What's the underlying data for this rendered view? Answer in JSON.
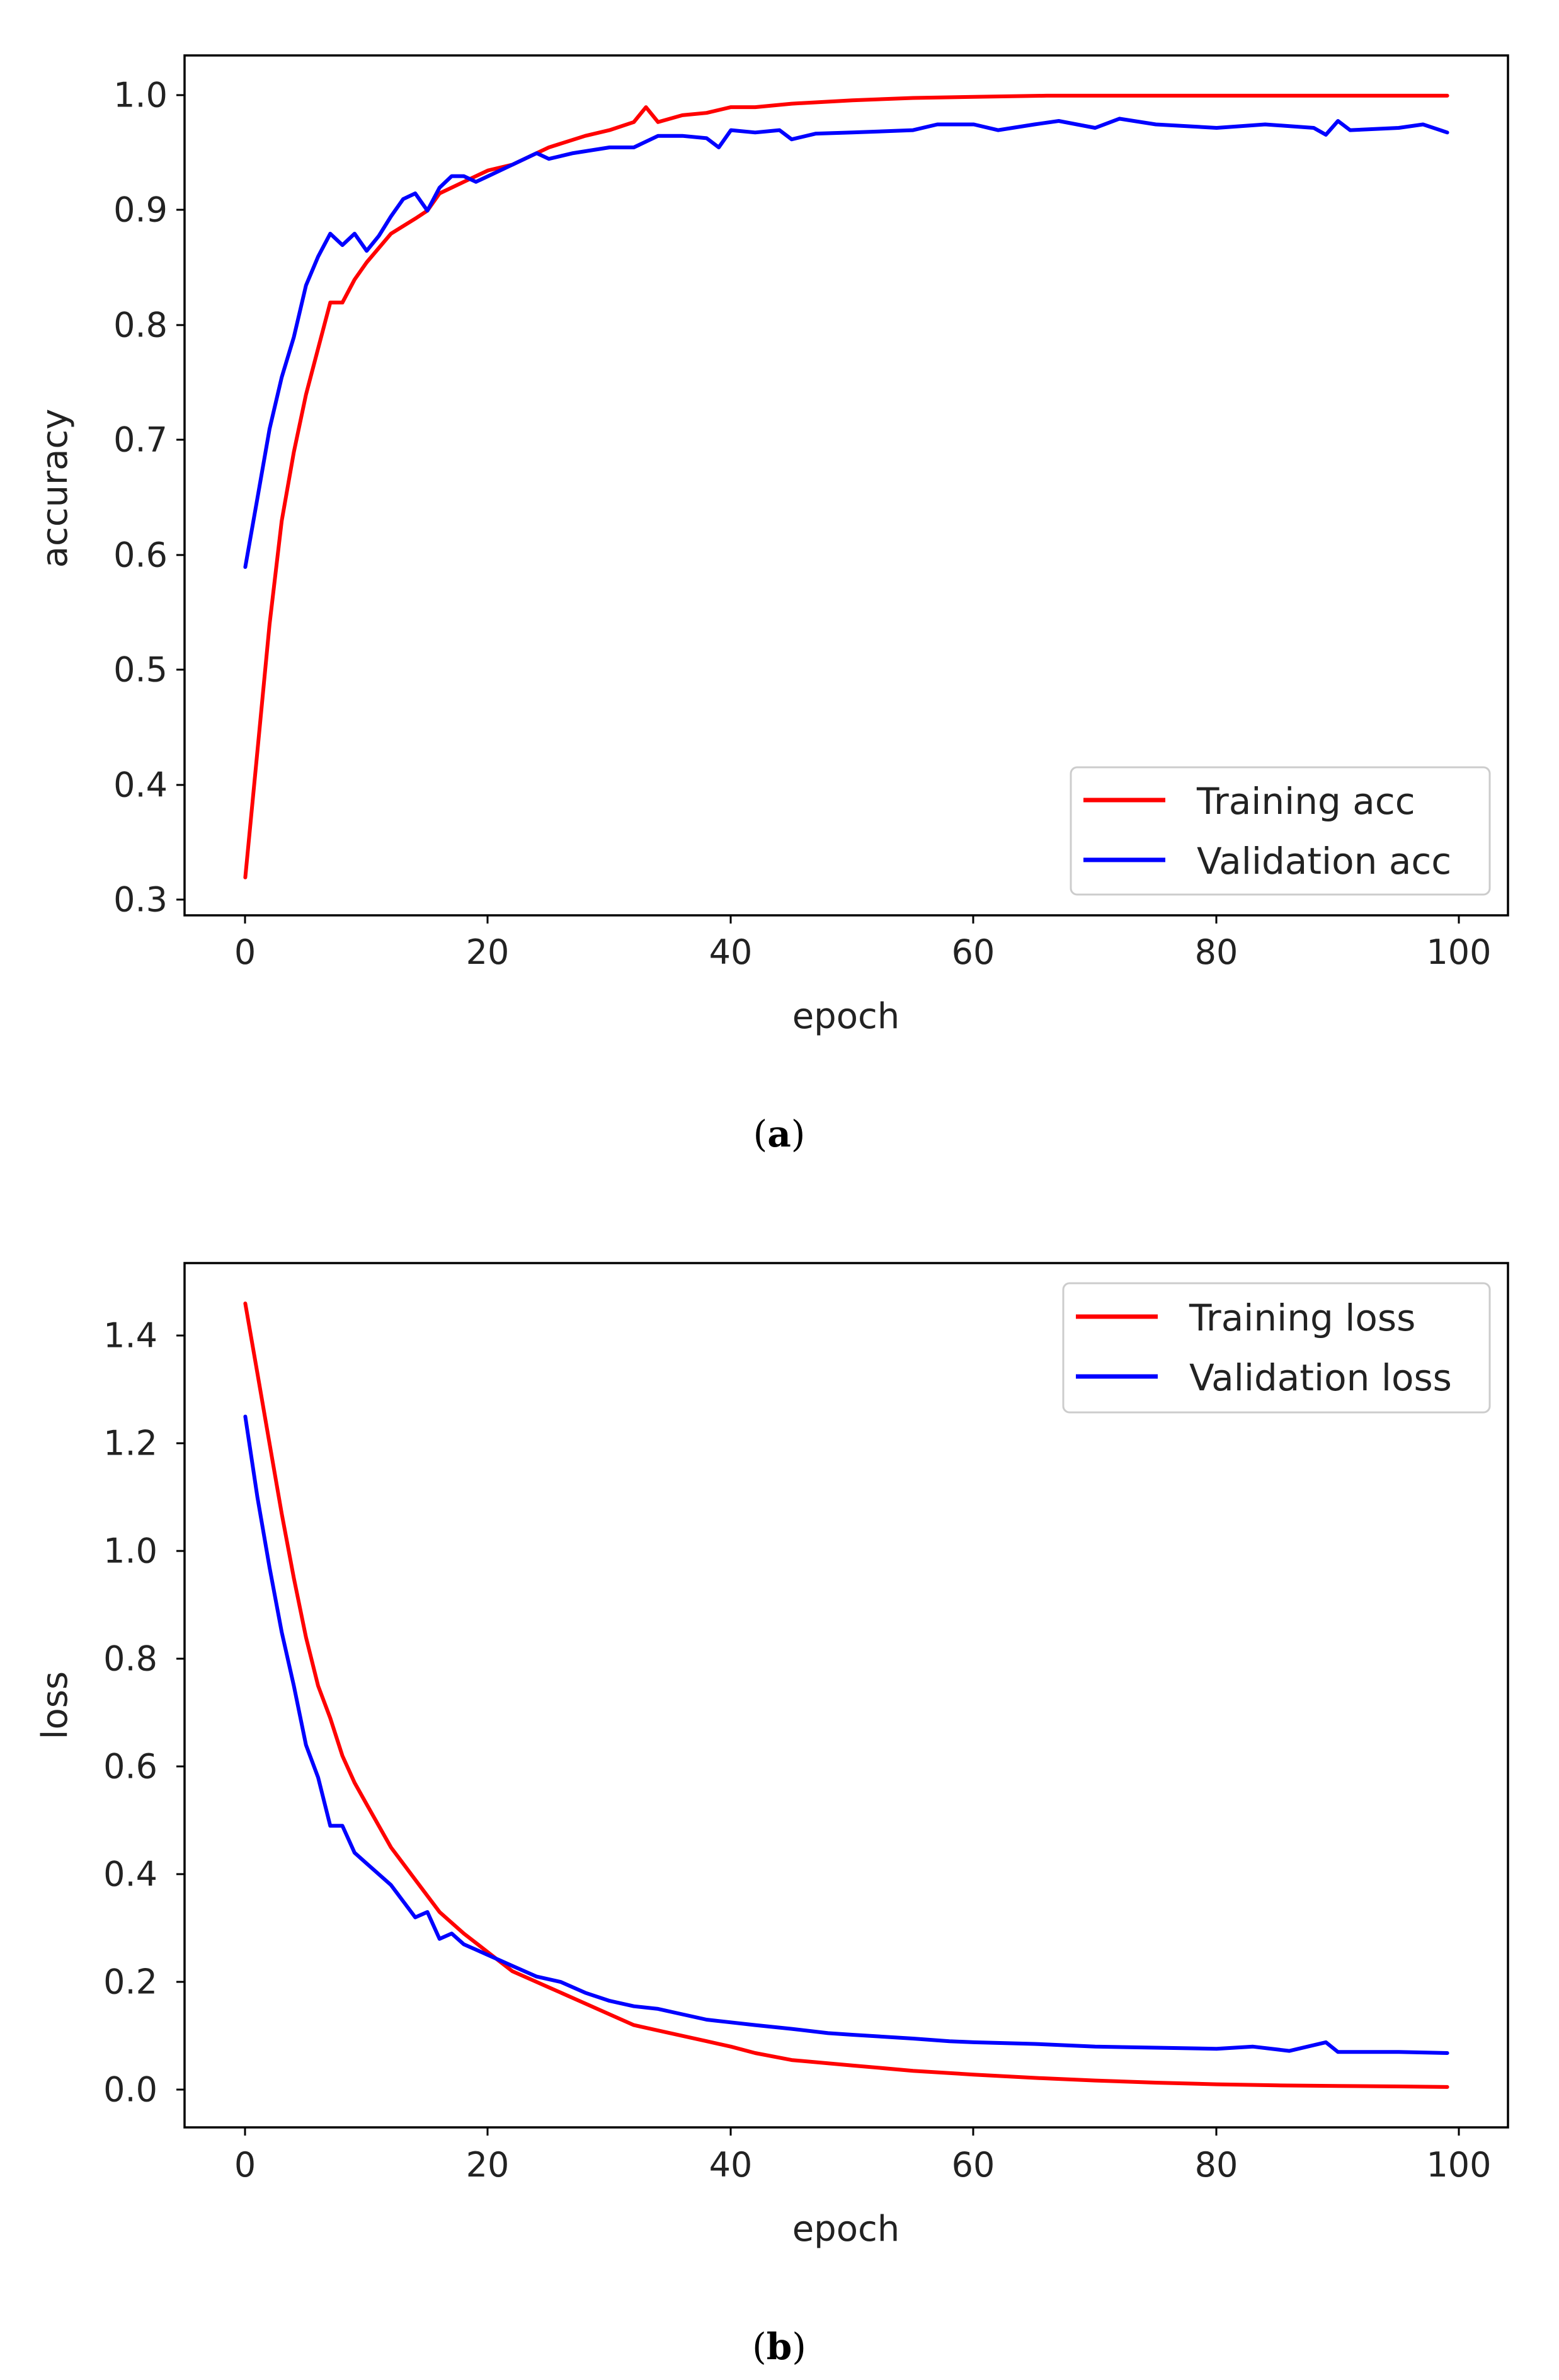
{
  "chart_data": [
    {
      "type": "line",
      "panel_label": "a",
      "xlabel": "epoch",
      "ylabel": "accuracy",
      "xlim": [
        -5,
        104
      ],
      "ylim": [
        0.287,
        1.035
      ],
      "xticks": [
        "0",
        "20",
        "40",
        "60",
        "80",
        "100"
      ],
      "yticks": [
        "0.3",
        "0.4",
        "0.5",
        "0.6",
        "0.7",
        "0.8",
        "0.9",
        "1.0"
      ],
      "legend_position": "lower-right",
      "series": [
        {
          "name": "Training acc",
          "color": "#ff0000",
          "anchors": [
            [
              0,
              0.32
            ],
            [
              1,
              0.43
            ],
            [
              2,
              0.54
            ],
            [
              3,
              0.63
            ],
            [
              4,
              0.69
            ],
            [
              5,
              0.74
            ],
            [
              6,
              0.78
            ],
            [
              7,
              0.82
            ],
            [
              8,
              0.82
            ],
            [
              9,
              0.84
            ],
            [
              10,
              0.855
            ],
            [
              12,
              0.88
            ],
            [
              14,
              0.893
            ],
            [
              15,
              0.9
            ],
            [
              16,
              0.915
            ],
            [
              18,
              0.925
            ],
            [
              20,
              0.935
            ],
            [
              22,
              0.94
            ],
            [
              25,
              0.955
            ],
            [
              28,
              0.965
            ],
            [
              30,
              0.97
            ],
            [
              32,
              0.977
            ],
            [
              33,
              0.99
            ],
            [
              34,
              0.977
            ],
            [
              36,
              0.983
            ],
            [
              38,
              0.985
            ],
            [
              40,
              0.99
            ],
            [
              42,
              0.99
            ],
            [
              45,
              0.993
            ],
            [
              50,
              0.996
            ],
            [
              55,
              0.998
            ],
            [
              60,
              0.999
            ],
            [
              66,
              1.0
            ],
            [
              70,
              1.0
            ],
            [
              80,
              1.0
            ],
            [
              90,
              1.0
            ],
            [
              99,
              1.0
            ]
          ]
        },
        {
          "name": "Validation acc",
          "color": "#0000ff",
          "anchors": [
            [
              0,
              0.59
            ],
            [
              1,
              0.65
            ],
            [
              2,
              0.71
            ],
            [
              3,
              0.755
            ],
            [
              4,
              0.79
            ],
            [
              5,
              0.835
            ],
            [
              6,
              0.86
            ],
            [
              7,
              0.88
            ],
            [
              8,
              0.87
            ],
            [
              9,
              0.88
            ],
            [
              10,
              0.865
            ],
            [
              11,
              0.878
            ],
            [
              12,
              0.895
            ],
            [
              13,
              0.91
            ],
            [
              14,
              0.915
            ],
            [
              15,
              0.9
            ],
            [
              16,
              0.92
            ],
            [
              17,
              0.93
            ],
            [
              18,
              0.93
            ],
            [
              19,
              0.925
            ],
            [
              20,
              0.93
            ],
            [
              22,
              0.94
            ],
            [
              24,
              0.95
            ],
            [
              25,
              0.945
            ],
            [
              27,
              0.95
            ],
            [
              30,
              0.955
            ],
            [
              32,
              0.955
            ],
            [
              34,
              0.965
            ],
            [
              36,
              0.965
            ],
            [
              38,
              0.963
            ],
            [
              39,
              0.955
            ],
            [
              40,
              0.97
            ],
            [
              42,
              0.968
            ],
            [
              44,
              0.97
            ],
            [
              45,
              0.962
            ],
            [
              47,
              0.967
            ],
            [
              50,
              0.968
            ],
            [
              55,
              0.97
            ],
            [
              57,
              0.975
            ],
            [
              60,
              0.975
            ],
            [
              62,
              0.97
            ],
            [
              65,
              0.975
            ],
            [
              67,
              0.978
            ],
            [
              70,
              0.972
            ],
            [
              72,
              0.98
            ],
            [
              75,
              0.975
            ],
            [
              80,
              0.972
            ],
            [
              84,
              0.975
            ],
            [
              88,
              0.972
            ],
            [
              89,
              0.966
            ],
            [
              90,
              0.978
            ],
            [
              91,
              0.97
            ],
            [
              95,
              0.972
            ],
            [
              97,
              0.975
            ],
            [
              99,
              0.968
            ]
          ]
        }
      ]
    },
    {
      "type": "line",
      "panel_label": "b",
      "xlabel": "epoch",
      "ylabel": "loss",
      "xlim": [
        -5,
        104
      ],
      "ylim": [
        -0.07,
        1.535
      ],
      "xticks": [
        "0",
        "20",
        "40",
        "60",
        "80",
        "100"
      ],
      "yticks": [
        "0.0",
        "0.2",
        "0.4",
        "0.6",
        "0.8",
        "1.0",
        "1.2",
        "1.4"
      ],
      "legend_position": "upper-right",
      "series": [
        {
          "name": "Training loss",
          "color": "#ff0000",
          "anchors": [
            [
              0,
              1.46
            ],
            [
              1,
              1.33
            ],
            [
              2,
              1.2
            ],
            [
              3,
              1.07
            ],
            [
              4,
              0.95
            ],
            [
              5,
              0.84
            ],
            [
              6,
              0.75
            ],
            [
              7,
              0.69
            ],
            [
              8,
              0.62
            ],
            [
              9,
              0.57
            ],
            [
              10,
              0.53
            ],
            [
              12,
              0.45
            ],
            [
              14,
              0.39
            ],
            [
              16,
              0.33
            ],
            [
              18,
              0.29
            ],
            [
              20,
              0.255
            ],
            [
              22,
              0.22
            ],
            [
              25,
              0.19
            ],
            [
              28,
              0.16
            ],
            [
              30,
              0.14
            ],
            [
              32,
              0.12
            ],
            [
              35,
              0.105
            ],
            [
              38,
              0.09
            ],
            [
              40,
              0.08
            ],
            [
              42,
              0.068
            ],
            [
              45,
              0.055
            ],
            [
              50,
              0.045
            ],
            [
              55,
              0.035
            ],
            [
              60,
              0.028
            ],
            [
              65,
              0.022
            ],
            [
              70,
              0.017
            ],
            [
              75,
              0.013
            ],
            [
              80,
              0.01
            ],
            [
              85,
              0.008
            ],
            [
              90,
              0.007
            ],
            [
              95,
              0.006
            ],
            [
              99,
              0.005
            ]
          ]
        },
        {
          "name": "Validation loss",
          "color": "#0000ff",
          "anchors": [
            [
              0,
              1.25
            ],
            [
              1,
              1.1
            ],
            [
              2,
              0.97
            ],
            [
              3,
              0.85
            ],
            [
              4,
              0.75
            ],
            [
              5,
              0.64
            ],
            [
              6,
              0.58
            ],
            [
              7,
              0.49
            ],
            [
              8,
              0.49
            ],
            [
              9,
              0.44
            ],
            [
              10,
              0.42
            ],
            [
              12,
              0.38
            ],
            [
              13,
              0.35
            ],
            [
              14,
              0.32
            ],
            [
              15,
              0.33
            ],
            [
              16,
              0.28
            ],
            [
              17,
              0.29
            ],
            [
              18,
              0.27
            ],
            [
              19,
              0.26
            ],
            [
              20,
              0.25
            ],
            [
              22,
              0.23
            ],
            [
              24,
              0.21
            ],
            [
              26,
              0.2
            ],
            [
              28,
              0.18
            ],
            [
              30,
              0.165
            ],
            [
              32,
              0.155
            ],
            [
              34,
              0.15
            ],
            [
              36,
              0.14
            ],
            [
              38,
              0.13
            ],
            [
              40,
              0.125
            ],
            [
              42,
              0.12
            ],
            [
              45,
              0.113
            ],
            [
              48,
              0.105
            ],
            [
              50,
              0.102
            ],
            [
              55,
              0.095
            ],
            [
              58,
              0.09
            ],
            [
              60,
              0.088
            ],
            [
              65,
              0.085
            ],
            [
              70,
              0.08
            ],
            [
              75,
              0.078
            ],
            [
              80,
              0.076
            ],
            [
              83,
              0.08
            ],
            [
              86,
              0.072
            ],
            [
              89,
              0.088
            ],
            [
              90,
              0.07
            ],
            [
              95,
              0.07
            ],
            [
              99,
              0.068
            ]
          ]
        }
      ]
    }
  ]
}
